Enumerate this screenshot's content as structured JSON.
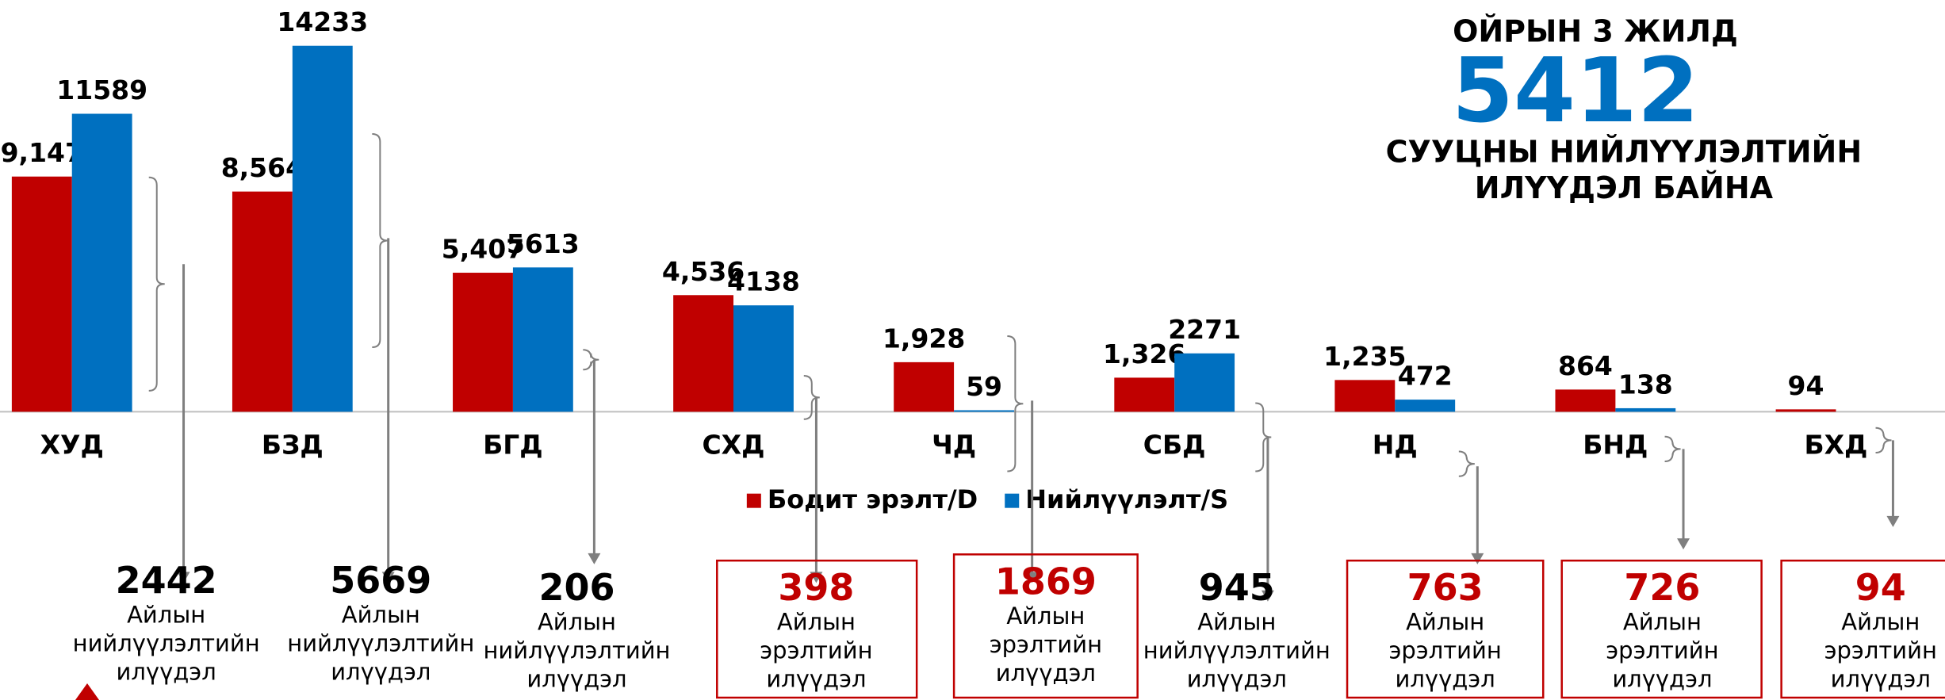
{
  "chart_data": {
    "type": "bar",
    "categories": [
      "ХУД",
      "БЗД",
      "БГД",
      "СХД",
      "ЧД",
      "СБД",
      "НД",
      "БНД",
      "БХД"
    ],
    "series": [
      {
        "name": "Бодит эрэлт/D",
        "color": "#c00000",
        "values": [
          9147,
          8564,
          5407,
          4536,
          1928,
          1326,
          1235,
          864,
          94
        ],
        "value_labels": [
          "9,147",
          "8,564",
          "5,407",
          "4,536",
          "1,928",
          "1,326",
          "1,235",
          "864",
          "94"
        ]
      },
      {
        "name": "Нийлүүлэлт/S",
        "color": "#0070c0",
        "values": [
          11589,
          14233,
          5613,
          4138,
          59,
          2271,
          472,
          138,
          null
        ]
      }
    ],
    "ylim": [
      0,
      15000
    ],
    "headline": {
      "line1": "ОЙРЫН 3 ЖИЛД",
      "number": "5412",
      "line2": "СУУЦНЫ НИЙЛҮҮЛЭЛТИЙН",
      "line3": "ИЛҮҮДЭЛ БАЙНА",
      "number_color": "#0070c0"
    },
    "differences": [
      {
        "value": 2442,
        "lines": [
          "Айлын",
          "нийлүүлэлтийн",
          "илүүдэл"
        ],
        "boxed": false
      },
      {
        "value": 5669,
        "lines": [
          "Айлын",
          "нийлүүлэлтийн",
          "илүүдэл"
        ],
        "boxed": false
      },
      {
        "value": 206,
        "lines": [
          "Айлын",
          "нийлүүлэлтийн",
          "илүүдэл"
        ],
        "boxed": false
      },
      {
        "value": 398,
        "lines": [
          "Айлын",
          "эрэлтийн",
          "илүүдэл"
        ],
        "boxed": true
      },
      {
        "value": 1869,
        "lines": [
          "Айлын",
          "эрэлтийн",
          "илүүдэл"
        ],
        "boxed": true
      },
      {
        "value": 945,
        "lines": [
          "Айлын",
          "нийлүүлэлтийн",
          "илүүдэл"
        ],
        "boxed": false
      },
      {
        "value": 763,
        "lines": [
          "Айлын",
          "эрэлтийн",
          "илүүдэл"
        ],
        "boxed": true
      },
      {
        "value": 726,
        "lines": [
          "Айлын",
          "эрэлтийн",
          "илүүдэл"
        ],
        "boxed": true
      },
      {
        "value": 94,
        "lines": [
          "Айлын",
          "эрэлтийн",
          "илүүдэл"
        ],
        "boxed": true
      }
    ],
    "highlight_color": "#c00000"
  }
}
